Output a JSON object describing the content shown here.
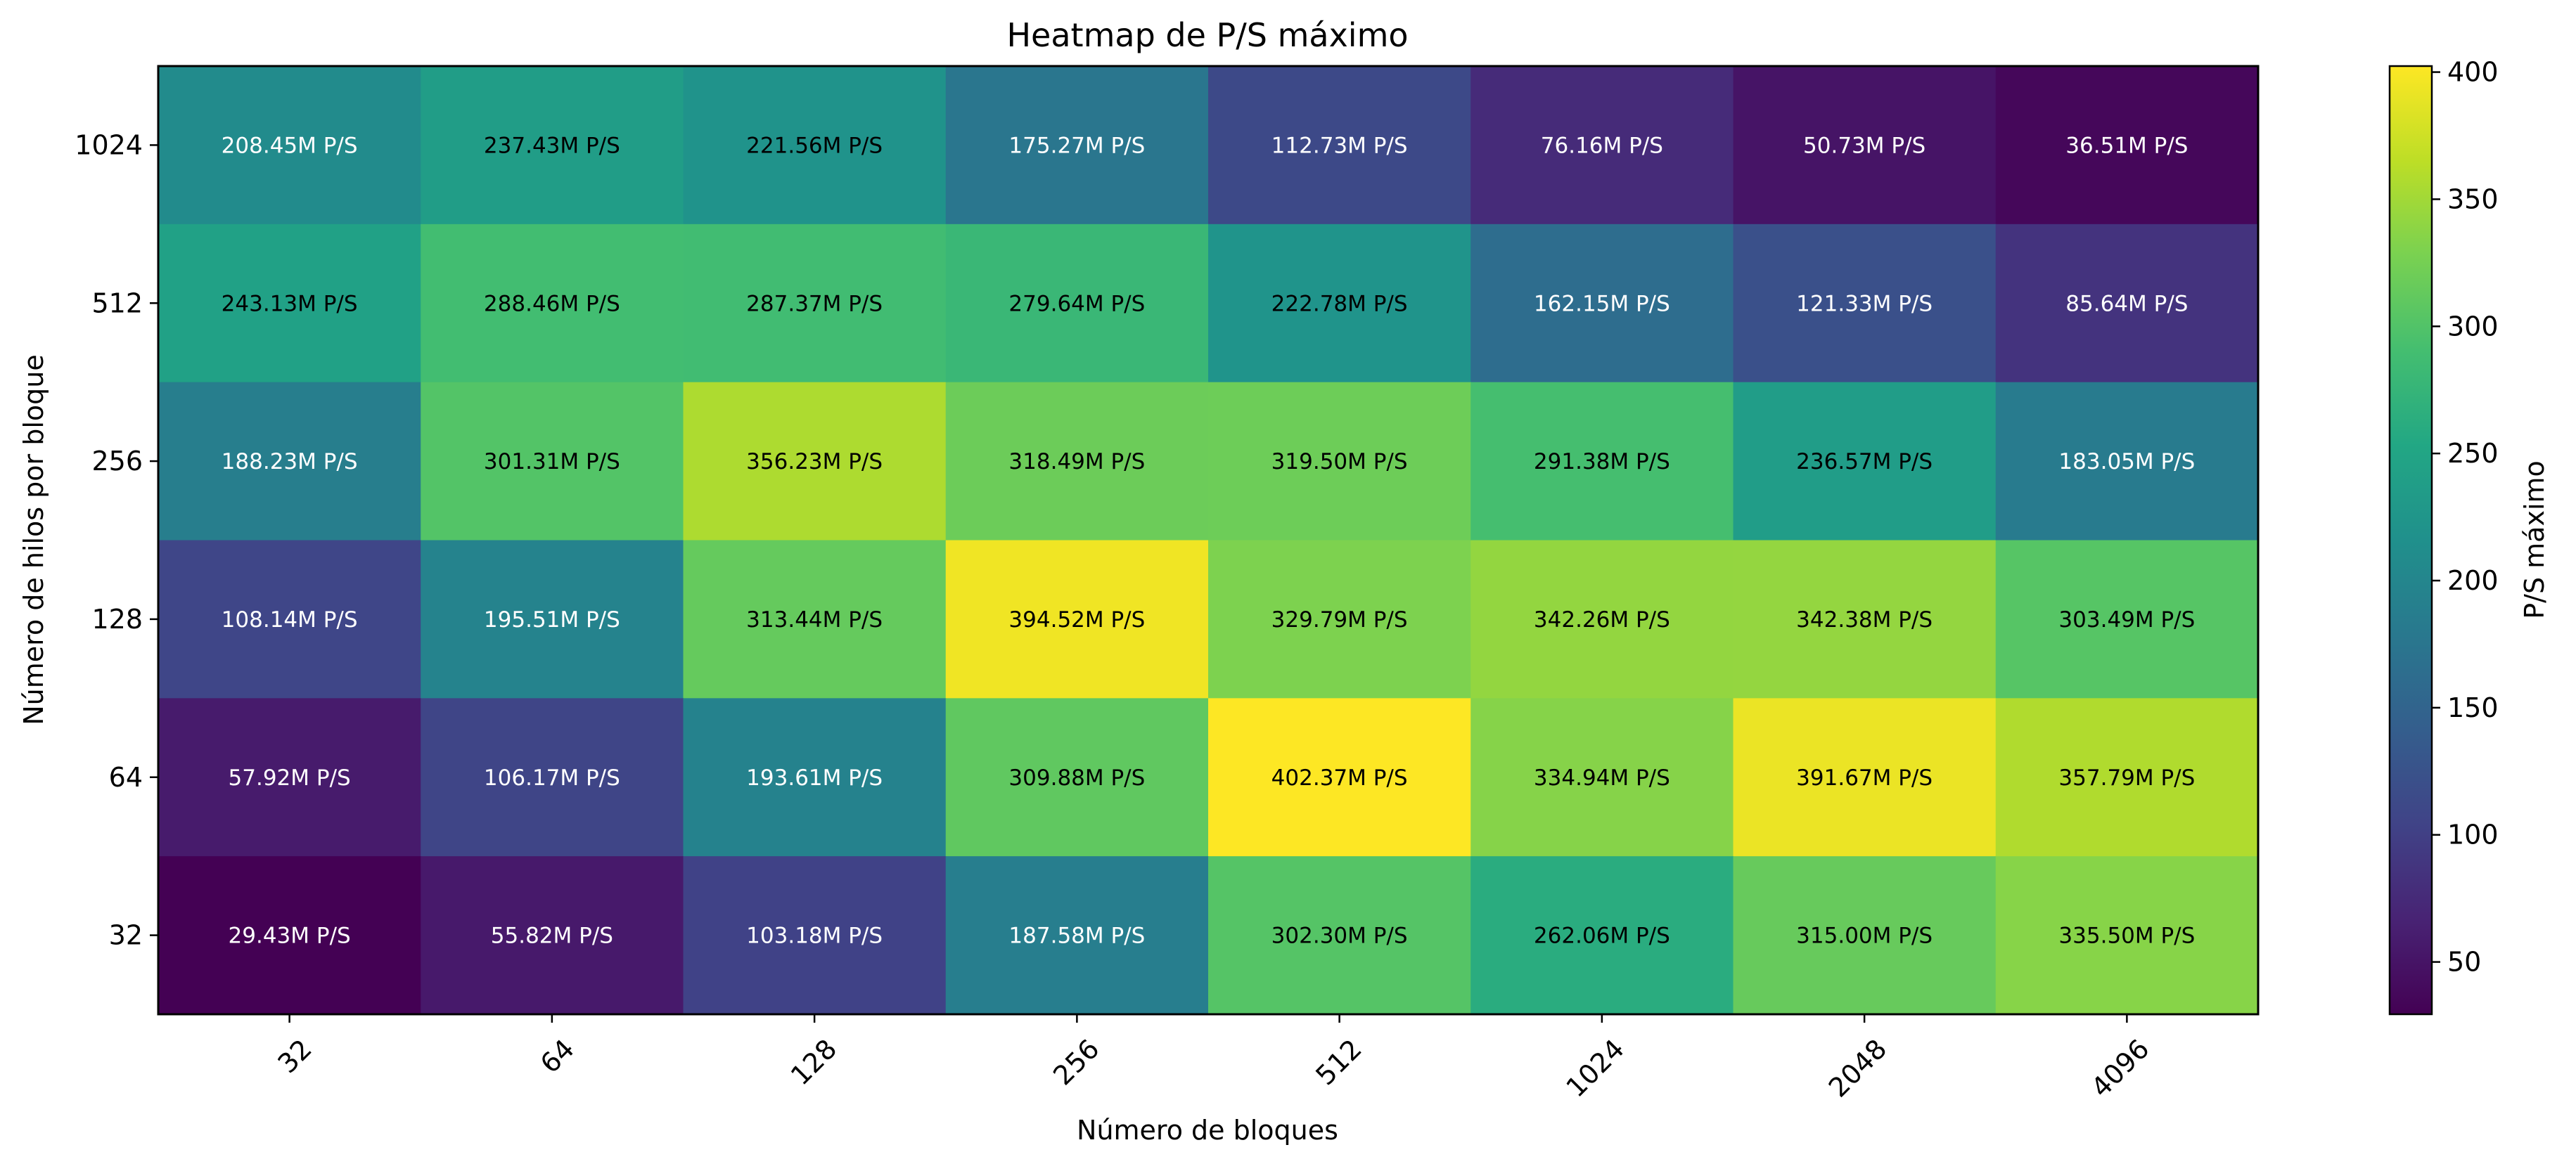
{
  "chart_data": {
    "type": "heatmap",
    "title": "Heatmap de P/S máximo",
    "xlabel": "Número de bloques",
    "ylabel": "Número de hilos por bloque",
    "colorbar_label": "P/S máximo",
    "colormap": "viridis",
    "x_categories": [
      "32",
      "64",
      "128",
      "256",
      "512",
      "1024",
      "2048",
      "4096"
    ],
    "y_categories": [
      "1024",
      "512",
      "256",
      "128",
      "64",
      "32"
    ],
    "values": [
      [
        208.45,
        237.43,
        221.56,
        175.27,
        112.73,
        76.16,
        50.73,
        36.51
      ],
      [
        243.13,
        288.46,
        287.37,
        279.64,
        222.78,
        162.15,
        121.33,
        85.64
      ],
      [
        188.23,
        301.31,
        356.23,
        318.49,
        319.5,
        291.38,
        236.57,
        183.05
      ],
      [
        108.14,
        195.51,
        313.44,
        394.52,
        329.79,
        342.26,
        342.38,
        303.49
      ],
      [
        57.92,
        106.17,
        193.61,
        309.88,
        402.37,
        334.94,
        391.67,
        357.79
      ],
      [
        29.43,
        55.82,
        103.18,
        187.58,
        302.3,
        262.06,
        315.0,
        335.5
      ]
    ],
    "cell_labels": [
      [
        "208.45M P/S",
        "237.43M P/S",
        "221.56M P/S",
        "175.27M P/S",
        "112.73M P/S",
        "76.16M P/S",
        "50.73M P/S",
        "36.51M P/S"
      ],
      [
        "243.13M P/S",
        "288.46M P/S",
        "287.37M P/S",
        "279.64M P/S",
        "222.78M P/S",
        "162.15M P/S",
        "121.33M P/S",
        "85.64M P/S"
      ],
      [
        "188.23M P/S",
        "301.31M P/S",
        "356.23M P/S",
        "318.49M P/S",
        "319.50M P/S",
        "291.38M P/S",
        "236.57M P/S",
        "183.05M P/S"
      ],
      [
        "108.14M P/S",
        "195.51M P/S",
        "313.44M P/S",
        "394.52M P/S",
        "329.79M P/S",
        "342.26M P/S",
        "342.38M P/S",
        "303.49M P/S"
      ],
      [
        "57.92M P/S",
        "106.17M P/S",
        "193.61M P/S",
        "309.88M P/S",
        "402.37M P/S",
        "334.94M P/S",
        "391.67M P/S",
        "357.79M P/S"
      ],
      [
        "29.43M P/S",
        "55.82M P/S",
        "103.18M P/S",
        "187.58M P/S",
        "302.30M P/S",
        "262.06M P/S",
        "315.00M P/S",
        "335.50M P/S"
      ]
    ],
    "colorbar_range": [
      29.43,
      402.37
    ],
    "colorbar_ticks": [
      "50",
      "100",
      "150",
      "200",
      "250",
      "300",
      "350",
      "400"
    ],
    "x_tick_rotation_deg": 45,
    "grid": false
  }
}
